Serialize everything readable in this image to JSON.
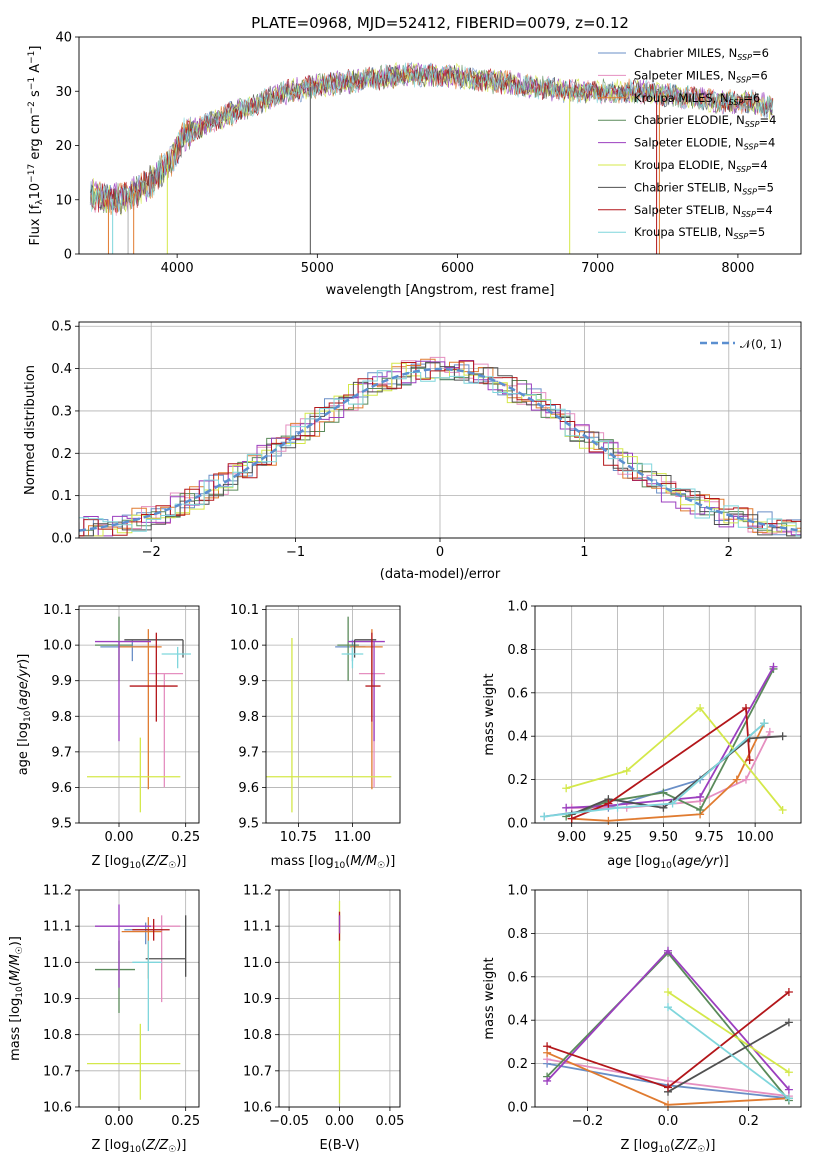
{
  "title": "PLATE=0968, MJD=52412, FIBERID=0079, z=0.12",
  "series_colors": {
    "Chabrier MILES": "#6a8fc7",
    "Salpeter MILES": "#e58fc0",
    "Kroupa MILES": "#e07b30",
    "Chabrier ELODIE": "#5a8a5a",
    "Salpeter ELODIE": "#9b3fbf",
    "Kroupa ELODIE": "#d4e84a",
    "Chabrier STELIB": "#505050",
    "Salpeter STELIB": "#b3161a",
    "Kroupa STELIB": "#7fd6dc"
  },
  "chart_data": [
    {
      "type": "line",
      "id": "spectrum",
      "xlabel": "wavelength [Angstrom, rest frame]",
      "ylabel": "Flux [f_λ 10^-17 erg cm^-2 s^-1 A^-1]",
      "xlim": [
        3300,
        8450
      ],
      "ylim": [
        0,
        40
      ],
      "xticks": [
        4000,
        5000,
        6000,
        7000,
        8000
      ],
      "yticks": [
        0,
        10,
        20,
        30,
        40
      ],
      "grid": false,
      "legend": "top-right",
      "legend_entries": [
        "Chabrier MILES, N_SSP=6",
        "Salpeter MILES, N_SSP=6",
        "Kroupa MILES, N_SSP=6",
        "Chabrier ELODIE, N_SSP=4",
        "Salpeter ELODIE, N_SSP=4",
        "Kroupa ELODIE, N_SSP=4",
        "Chabrier STELIB, N_SSP=5",
        "Salpeter STELIB, N_SSP=4",
        "Kroupa STELIB, N_SSP=5"
      ],
      "continuum": [
        [
          3380,
          11
        ],
        [
          3500,
          10
        ],
        [
          3650,
          10.5
        ],
        [
          3800,
          13
        ],
        [
          3950,
          17
        ],
        [
          4050,
          22
        ],
        [
          4300,
          25
        ],
        [
          4500,
          27
        ],
        [
          4800,
          30
        ],
        [
          5000,
          31
        ],
        [
          5300,
          32
        ],
        [
          5600,
          33
        ],
        [
          5900,
          33
        ],
        [
          6200,
          32
        ],
        [
          6500,
          31
        ],
        [
          6800,
          30
        ],
        [
          7000,
          30
        ],
        [
          7300,
          30
        ],
        [
          7600,
          29
        ],
        [
          7900,
          28
        ],
        [
          8100,
          28
        ],
        [
          8250,
          27
        ]
      ]
    },
    {
      "type": "step",
      "id": "residuals",
      "xlabel": "(data-model)/error",
      "ylabel": "Normed distribution",
      "xlim": [
        -2.5,
        2.5
      ],
      "ylim": [
        0,
        0.51
      ],
      "xticks": [
        -2,
        -1,
        0,
        1,
        2
      ],
      "yticks": [
        0.0,
        0.1,
        0.2,
        0.3,
        0.4,
        0.5
      ],
      "grid": true,
      "legend": "top-right",
      "legend_entries": [
        "𝒩(0, 1)"
      ],
      "bin_width": 0.1,
      "reference_curve": "normal(0,1)"
    },
    {
      "type": "scatter",
      "id": "age_vs_Z",
      "xlabel": "Z [log10(Z/Z☉)]",
      "ylabel": "age [log10(age/yr)]",
      "xlim": [
        -0.15,
        0.3
      ],
      "ylim": [
        9.5,
        10.11
      ],
      "xticks": [
        0.0,
        0.25
      ],
      "yticks": [
        9.5,
        9.6,
        9.7,
        9.8,
        9.9,
        10.0,
        10.1
      ],
      "grid": true,
      "points": [
        {
          "series": "Chabrier MILES",
          "x": 0.05,
          "y": 9.995,
          "xerr": [
            0.12,
            0.08
          ],
          "yerr": [
            0.04,
            0.02
          ]
        },
        {
          "series": "Salpeter MILES",
          "x": 0.17,
          "y": 9.92,
          "xerr": [
            0.06,
            0.07
          ],
          "yerr": [
            0.32,
            0.0
          ]
        },
        {
          "series": "Kroupa MILES",
          "x": 0.11,
          "y": 9.995,
          "xerr": [
            0.11,
            0.05
          ],
          "yerr": [
            0.4,
            0.05
          ]
        },
        {
          "series": "Chabrier ELODIE",
          "x": 0.0,
          "y": 10.0,
          "xerr": [
            0.09,
            0.05
          ],
          "yerr": [
            0.1,
            0.08
          ]
        },
        {
          "series": "Salpeter ELODIE",
          "x": 0.0,
          "y": 10.01,
          "xerr": [
            0.09,
            0.12
          ],
          "yerr": [
            0.28,
            0.0
          ]
        },
        {
          "series": "Kroupa ELODIE",
          "x": 0.08,
          "y": 9.63,
          "xerr": [
            0.2,
            0.15
          ],
          "yerr": [
            0.1,
            0.11
          ]
        },
        {
          "series": "Chabrier STELIB",
          "x": 0.24,
          "y": 10.015,
          "xerr": [
            0.22,
            0.0
          ],
          "yerr": [
            0.05,
            0.0
          ]
        },
        {
          "series": "Salpeter STELIB",
          "x": 0.14,
          "y": 9.885,
          "xerr": [
            0.1,
            0.08
          ],
          "yerr": [
            0.1,
            0.15
          ]
        },
        {
          "series": "Kroupa STELIB",
          "x": 0.22,
          "y": 9.975,
          "xerr": [
            0.06,
            0.05
          ],
          "yerr": [
            0.04,
            0.02
          ]
        }
      ]
    },
    {
      "type": "scatter",
      "id": "age_vs_mass",
      "xlabel": "mass [log10(M/M☉)]",
      "ylabel": "",
      "xlim": [
        10.6,
        11.22
      ],
      "ylim": [
        9.5,
        10.11
      ],
      "xticks": [
        10.75,
        11.0
      ],
      "yticks": [
        9.5,
        9.6,
        9.7,
        9.8,
        9.9,
        10.0,
        10.1
      ],
      "grid": true,
      "points": [
        {
          "series": "Chabrier MILES",
          "x": 11.0,
          "y": 9.995,
          "xerr": [
            0.08,
            0.06
          ],
          "yerr": [
            0.04,
            0.02
          ]
        },
        {
          "series": "Salpeter MILES",
          "x": 11.1,
          "y": 9.92,
          "xerr": [
            0.07,
            0.05
          ],
          "yerr": [
            0.32,
            0.0
          ]
        },
        {
          "series": "Kroupa MILES",
          "x": 11.09,
          "y": 9.995,
          "xerr": [
            0.1,
            0.05
          ],
          "yerr": [
            0.4,
            0.05
          ]
        },
        {
          "series": "Chabrier ELODIE",
          "x": 10.98,
          "y": 10.0,
          "xerr": [
            0.05,
            0.05
          ],
          "yerr": [
            0.1,
            0.08
          ]
        },
        {
          "series": "Salpeter ELODIE",
          "x": 11.1,
          "y": 10.01,
          "xerr": [
            0.12,
            0.05
          ],
          "yerr": [
            0.28,
            0.0
          ]
        },
        {
          "series": "Kroupa ELODIE",
          "x": 10.72,
          "y": 9.63,
          "xerr": [
            0.12,
            0.46
          ],
          "yerr": [
            0.1,
            0.39
          ]
        },
        {
          "series": "Chabrier STELIB",
          "x": 11.01,
          "y": 10.015,
          "xerr": [
            0.0,
            0.1
          ],
          "yerr": [
            0.05,
            0.0
          ]
        },
        {
          "series": "Salpeter STELIB",
          "x": 11.09,
          "y": 9.885,
          "xerr": [
            0.03,
            0.04
          ],
          "yerr": [
            0.1,
            0.15
          ]
        },
        {
          "series": "Kroupa STELIB",
          "x": 11.0,
          "y": 9.975,
          "xerr": [
            0.05,
            0.05
          ],
          "yerr": [
            0.04,
            0.02
          ]
        }
      ]
    },
    {
      "type": "line",
      "id": "weight_vs_age",
      "xlabel": "age [log10(age/yr)]",
      "ylabel": "mass weight",
      "xlim": [
        8.8,
        10.25
      ],
      "ylim": [
        0,
        1.0
      ],
      "xticks": [
        9.0,
        9.25,
        9.5,
        9.75,
        10.0
      ],
      "yticks": [
        0.0,
        0.2,
        0.4,
        0.6,
        0.8,
        1.0
      ],
      "grid": true,
      "series": [
        {
          "name": "Chabrier MILES",
          "x": [
            8.85,
            9.2,
            9.7,
            10.05
          ],
          "y": [
            0.03,
            0.07,
            0.2,
            0.46
          ]
        },
        {
          "name": "Salpeter MILES",
          "x": [
            9.0,
            9.3,
            9.7,
            9.95,
            10.08
          ],
          "y": [
            0.07,
            0.07,
            0.1,
            0.2,
            0.42
          ]
        },
        {
          "name": "Kroupa MILES",
          "x": [
            9.0,
            9.2,
            9.7,
            9.9,
            10.05
          ],
          "y": [
            0.02,
            0.01,
            0.04,
            0.2,
            0.46
          ]
        },
        {
          "name": "Chabrier ELODIE",
          "x": [
            8.97,
            9.2,
            9.5,
            9.7,
            10.1
          ],
          "y": [
            0.03,
            0.1,
            0.14,
            0.06,
            0.71
          ]
        },
        {
          "name": "Salpeter ELODIE",
          "x": [
            8.97,
            9.2,
            9.7,
            10.1
          ],
          "y": [
            0.07,
            0.08,
            0.12,
            0.72
          ]
        },
        {
          "name": "Kroupa ELODIE",
          "x": [
            8.97,
            9.3,
            9.7,
            10.15
          ],
          "y": [
            0.16,
            0.24,
            0.53,
            0.06
          ]
        },
        {
          "name": "Chabrier STELIB",
          "x": [
            9.0,
            9.2,
            9.5,
            9.97,
            10.15
          ],
          "y": [
            0.04,
            0.11,
            0.07,
            0.39,
            0.4
          ]
        },
        {
          "name": "Salpeter STELIB",
          "x": [
            9.0,
            9.2,
            9.95,
            9.97
          ],
          "y": [
            0.02,
            0.09,
            0.53,
            0.29
          ]
        },
        {
          "name": "Kroupa STELIB",
          "x": [
            8.85,
            9.25,
            9.55,
            10.05
          ],
          "y": [
            0.03,
            0.07,
            0.09,
            0.46
          ]
        }
      ]
    },
    {
      "type": "scatter",
      "id": "mass_vs_Z",
      "xlabel": "Z [log10(Z/Z☉)]",
      "ylabel": "mass [log10(M/M☉)]",
      "xlim": [
        -0.15,
        0.3
      ],
      "ylim": [
        10.6,
        11.2
      ],
      "xticks": [
        0.0,
        0.25
      ],
      "yticks": [
        10.6,
        10.7,
        10.8,
        10.9,
        11.0,
        11.1,
        11.2
      ],
      "grid": true,
      "points": [
        {
          "series": "Chabrier MILES",
          "x": 0.1,
          "y": 11.09,
          "xerr": [
            0.08,
            0.06
          ],
          "yerr": [
            0.04,
            0.02
          ]
        },
        {
          "series": "Salpeter MILES",
          "x": 0.16,
          "y": 11.1,
          "xerr": [
            0.05,
            0.07
          ],
          "yerr": [
            0.21,
            0.03
          ]
        },
        {
          "series": "Kroupa MILES",
          "x": 0.11,
          "y": 11.085,
          "xerr": [
            0.1,
            0.05
          ],
          "yerr": [
            0.13,
            0.04
          ]
        },
        {
          "series": "Chabrier ELODIE",
          "x": 0.0,
          "y": 10.98,
          "xerr": [
            0.09,
            0.06
          ],
          "yerr": [
            0.12,
            0.08
          ]
        },
        {
          "series": "Salpeter ELODIE",
          "x": 0.0,
          "y": 11.1,
          "xerr": [
            0.09,
            0.12
          ],
          "yerr": [
            0.17,
            0.06
          ]
        },
        {
          "series": "Kroupa ELODIE",
          "x": 0.08,
          "y": 10.72,
          "xerr": [
            0.2,
            0.15
          ],
          "yerr": [
            0.1,
            0.11
          ]
        },
        {
          "series": "Chabrier STELIB",
          "x": 0.25,
          "y": 11.01,
          "xerr": [
            0.15,
            0.0
          ],
          "yerr": [
            0.05,
            0.12
          ]
        },
        {
          "series": "Salpeter STELIB",
          "x": 0.13,
          "y": 11.09,
          "xerr": [
            0.08,
            0.06
          ],
          "yerr": [
            0.03,
            0.03
          ]
        },
        {
          "series": "Kroupa STELIB",
          "x": 0.11,
          "y": 11.0,
          "xerr": [
            0.06,
            0.05
          ],
          "yerr": [
            0.19,
            0.06
          ]
        }
      ]
    },
    {
      "type": "scatter",
      "id": "mass_vs_EBV",
      "xlabel": "E(B-V)",
      "ylabel": "",
      "xlim": [
        -0.06,
        0.06
      ],
      "ylim": [
        10.6,
        11.2
      ],
      "xticks": [
        -0.05,
        0.0,
        0.05
      ],
      "yticks": [
        10.6,
        10.7,
        10.8,
        10.9,
        11.0,
        11.1,
        11.2
      ],
      "grid": true,
      "points": [
        {
          "series": "Kroupa ELODIE",
          "x": 0.0,
          "y": 10.72,
          "xerr": [
            0.0,
            0.0
          ],
          "yerr": [
            0.11,
            0.45
          ]
        },
        {
          "series": "Salpeter STELIB",
          "x": 0.0,
          "y": 11.09,
          "xerr": [
            0.0,
            0.0
          ],
          "yerr": [
            0.03,
            0.05
          ]
        },
        {
          "series": "Salpeter ELODIE",
          "x": 0.0,
          "y": 11.1,
          "xerr": [
            0.0,
            0.0
          ],
          "yerr": [
            0.02,
            0.03
          ]
        }
      ]
    },
    {
      "type": "line",
      "id": "weight_vs_Z",
      "xlabel": "Z [log10(Z/Z☉)]",
      "ylabel": "mass weight",
      "xlim": [
        -0.33,
        0.33
      ],
      "ylim": [
        0,
        1.0
      ],
      "xticks": [
        -0.2,
        0.0,
        0.2
      ],
      "yticks": [
        0.0,
        0.2,
        0.4,
        0.6,
        0.8,
        1.0
      ],
      "grid": true,
      "series": [
        {
          "name": "Chabrier MILES",
          "x": [
            -0.3,
            0.0,
            0.3
          ],
          "y": [
            0.2,
            0.1,
            0.04
          ]
        },
        {
          "name": "Salpeter MILES",
          "x": [
            -0.3,
            0.0,
            0.3
          ],
          "y": [
            0.22,
            0.12,
            0.05
          ]
        },
        {
          "name": "Kroupa MILES",
          "x": [
            -0.3,
            0.0,
            0.3
          ],
          "y": [
            0.25,
            0.01,
            0.04
          ]
        },
        {
          "name": "Chabrier ELODIE",
          "x": [
            -0.3,
            0.0,
            0.3
          ],
          "y": [
            0.14,
            0.71,
            0.03
          ]
        },
        {
          "name": "Salpeter ELODIE",
          "x": [
            -0.3,
            0.0,
            0.3
          ],
          "y": [
            0.12,
            0.72,
            0.08
          ]
        },
        {
          "name": "Kroupa ELODIE",
          "x": [
            0.0,
            0.3
          ],
          "y": [
            0.53,
            0.16
          ]
        },
        {
          "name": "Chabrier STELIB",
          "x": [
            0.0,
            0.3
          ],
          "y": [
            0.07,
            0.39
          ]
        },
        {
          "name": "Salpeter STELIB",
          "x": [
            -0.3,
            0.0,
            0.3
          ],
          "y": [
            0.28,
            0.09,
            0.53
          ]
        },
        {
          "name": "Kroupa STELIB",
          "x": [
            0.0,
            0.3
          ],
          "y": [
            0.46,
            0.04
          ]
        }
      ]
    }
  ]
}
